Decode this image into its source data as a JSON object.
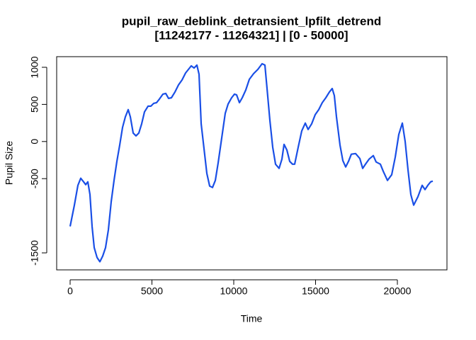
{
  "chart_data": {
    "type": "line",
    "title": "pupil_raw_deblink_detransient_lpfilt_detrend",
    "subtitle": "[11242177 - 11264321] | [0 - 50000]",
    "x_label": "Time",
    "y_label": "Pupil Size",
    "xlim": [
      -822,
      23030
    ],
    "ylim": [
      -1729,
      1143
    ],
    "xticks": [
      0,
      5000,
      10000,
      15000,
      20000
    ],
    "yticks": [
      -1500,
      -500,
      0,
      500,
      1000
    ],
    "grid": false,
    "series": [
      {
        "name": "pupil",
        "color": "#1a4fe6",
        "x": [
          0,
          260,
          476,
          649,
          822,
          952,
          1082,
          1212,
          1342,
          1472,
          1645,
          1818,
          1991,
          2165,
          2338,
          2511,
          2684,
          2857,
          3030,
          3203,
          3377,
          3550,
          3680,
          3853,
          4026,
          4199,
          4372,
          4545,
          4762,
          4935,
          5108,
          5281,
          5455,
          5671,
          5844,
          6017,
          6190,
          6407,
          6623,
          6840,
          7056,
          7229,
          7403,
          7576,
          7749,
          7879,
          8009,
          8182,
          8355,
          8528,
          8701,
          8874,
          9048,
          9264,
          9481,
          9654,
          9870,
          10043,
          10173,
          10346,
          10519,
          10736,
          10952,
          11212,
          11472,
          11732,
          11905,
          12035,
          12208,
          12381,
          12554,
          12771,
          12944,
          13074,
          13247,
          13420,
          13593,
          13723,
          13939,
          14156,
          14372,
          14545,
          14762,
          14978,
          15195,
          15411,
          15628,
          15844,
          16017,
          16147,
          16277,
          16494,
          16667,
          16840,
          17013,
          17186,
          17446,
          17706,
          17879,
          18052,
          18268,
          18528,
          18701,
          18961,
          19134,
          19394,
          19654,
          19870,
          20087,
          20303,
          20476,
          20649,
          20823,
          20996,
          21255,
          21515,
          21688,
          21861,
          22035,
          22165
        ],
        "values": [
          -1143,
          -857,
          -590,
          -495,
          -543,
          -581,
          -543,
          -714,
          -1143,
          -1429,
          -1562,
          -1619,
          -1543,
          -1429,
          -1190,
          -810,
          -524,
          -267,
          -48,
          190,
          333,
          429,
          333,
          114,
          76,
          114,
          238,
          400,
          476,
          476,
          514,
          524,
          571,
          638,
          648,
          581,
          590,
          667,
          762,
          829,
          924,
          971,
          1019,
          990,
          1029,
          905,
          238,
          -95,
          -429,
          -600,
          -619,
          -524,
          -286,
          48,
          381,
          505,
          590,
          638,
          629,
          524,
          590,
          695,
          838,
          914,
          971,
          1048,
          1029,
          714,
          286,
          -76,
          -305,
          -362,
          -238,
          -38,
          -114,
          -267,
          -305,
          -305,
          -76,
          143,
          248,
          162,
          238,
          362,
          429,
          524,
          590,
          667,
          714,
          619,
          333,
          -48,
          -257,
          -343,
          -267,
          -171,
          -162,
          -229,
          -362,
          -305,
          -238,
          -190,
          -276,
          -305,
          -400,
          -524,
          -448,
          -210,
          95,
          248,
          0,
          -381,
          -714,
          -857,
          -743,
          -590,
          -648,
          -590,
          -543,
          -533
        ]
      }
    ]
  }
}
